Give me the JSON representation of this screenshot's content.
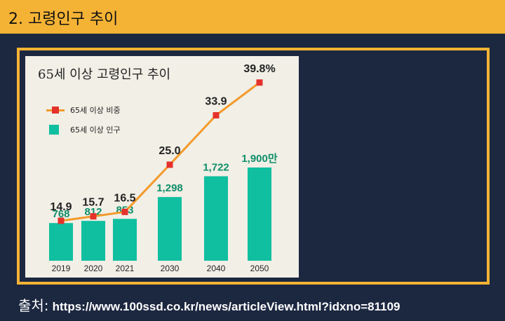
{
  "header": {
    "title": "2. 고령인구 추이"
  },
  "source": {
    "label": "출처:",
    "url": "https://www.100ssd.co.kr/news/articleView.html?idxno=81109"
  },
  "chart_data": {
    "type": "bar",
    "title": "65세 이상 고령인구 추이",
    "categories": [
      "2019",
      "2020",
      "2021",
      "2030",
      "2040",
      "2050"
    ],
    "legend": [
      "65세 이상 비중",
      "65세 이상 인구"
    ],
    "legend_position": "top-left",
    "grid": false,
    "colors": {
      "bar": "#10bfa0",
      "line": "#f39a2b",
      "marker": "#e5312b",
      "bar_label": "#0f8f6a"
    },
    "series": [
      {
        "name": "65세 이상 인구",
        "type": "bar",
        "values": [
          768,
          812,
          853,
          1298,
          1722,
          1900
        ],
        "labels": [
          "768",
          "812",
          "853",
          "1,298",
          "1,722",
          "1,900만"
        ]
      },
      {
        "name": "65세 이상 비중",
        "type": "line",
        "values": [
          14.9,
          15.7,
          16.5,
          25.0,
          33.9,
          39.8
        ],
        "labels": [
          "14.9",
          "15.7",
          "16.5",
          "25.0",
          "33.9",
          "39.8%"
        ]
      }
    ]
  }
}
